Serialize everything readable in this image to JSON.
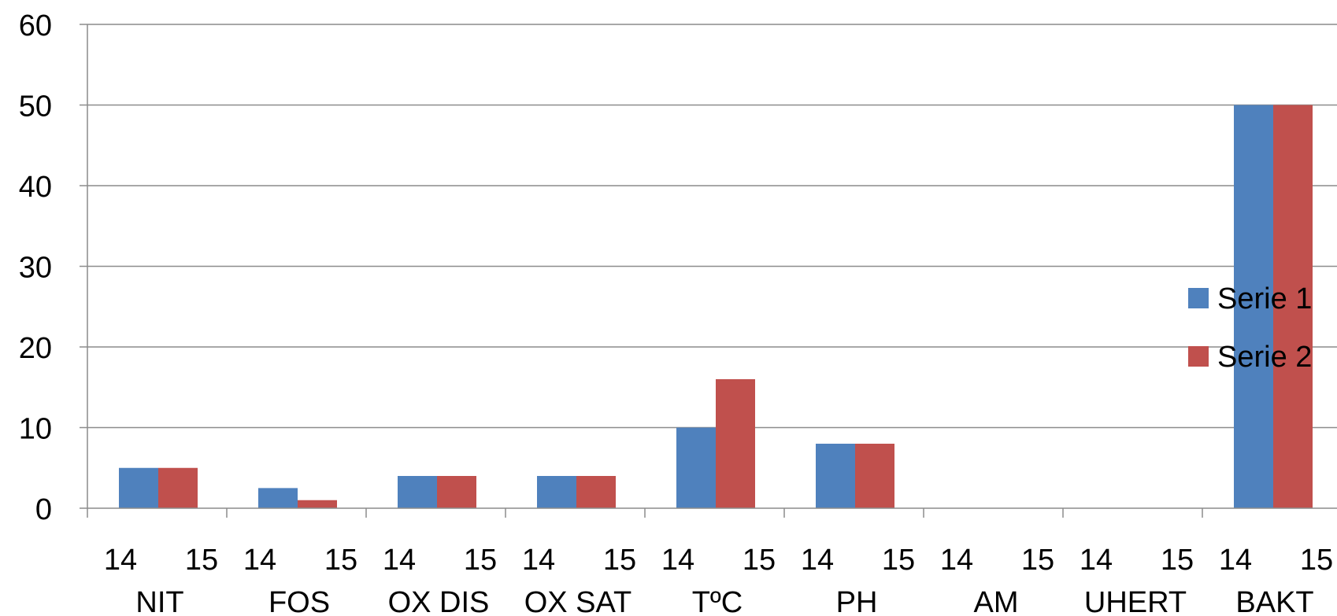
{
  "chart_data": {
    "type": "bar",
    "title": "",
    "xlabel": "",
    "ylabel": "",
    "ylim": [
      0,
      60
    ],
    "y_ticks": [
      0,
      10,
      20,
      30,
      40,
      50,
      60
    ],
    "grid": "horizontal",
    "legend_position": "right",
    "groups": [
      "NIT",
      "FOS",
      "OX DIS",
      "OX SAT",
      "TºC",
      "PH",
      "AM",
      "UHERT",
      "BAKT"
    ],
    "subcategories": [
      "14",
      "15"
    ],
    "series": [
      {
        "name": "Serie 1",
        "color": "#4F81BD",
        "values": [
          5,
          2.5,
          4,
          4,
          10,
          8,
          0,
          0,
          50
        ]
      },
      {
        "name": "Serie 2",
        "color": "#C0504D",
        "values": [
          5,
          1,
          4,
          4,
          16,
          8,
          0,
          0,
          50
        ]
      }
    ]
  }
}
